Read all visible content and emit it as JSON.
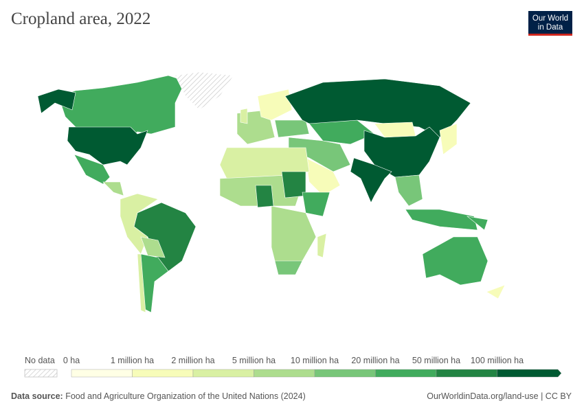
{
  "title": "Cropland area, 2022",
  "logo": {
    "line1": "Our World",
    "line2": "in Data"
  },
  "legend": {
    "no_data_label": "No data",
    "labels": [
      "0 ha",
      "1 million ha",
      "2 million ha",
      "5 million ha",
      "10 million ha",
      "20 million ha",
      "50 million ha",
      "100 million ha"
    ],
    "colors": [
      "#ffffe5",
      "#f7fcb9",
      "#d9f0a3",
      "#addd8e",
      "#78c679",
      "#41ab5d",
      "#238443",
      "#005a32"
    ]
  },
  "map_regions": [
    {
      "region": "Canada",
      "bin": 5
    },
    {
      "region": "Alaska",
      "bin": 7
    },
    {
      "region": "United States",
      "bin": 7
    },
    {
      "region": "Greenland",
      "bin": -1
    },
    {
      "region": "Mexico",
      "bin": 5
    },
    {
      "region": "Central America",
      "bin": 3
    },
    {
      "region": "Brazil",
      "bin": 6
    },
    {
      "region": "Northern South America",
      "bin": 2
    },
    {
      "region": "Argentina",
      "bin": 5
    },
    {
      "region": "Chile",
      "bin": 2
    },
    {
      "region": "Bolivia & Paraguay",
      "bin": 3
    },
    {
      "region": "Western Europe",
      "bin": 3
    },
    {
      "region": "Scandinavia",
      "bin": 1
    },
    {
      "region": "United Kingdom",
      "bin": 2
    },
    {
      "region": "Eastern Europe",
      "bin": 4
    },
    {
      "region": "Russia",
      "bin": 7
    },
    {
      "region": "Kazakhstan",
      "bin": 5
    },
    {
      "region": "Mongolia",
      "bin": 1
    },
    {
      "region": "China",
      "bin": 7
    },
    {
      "region": "India",
      "bin": 7
    },
    {
      "region": "Middle East",
      "bin": 4
    },
    {
      "region": "Arabian Peninsula",
      "bin": 1
    },
    {
      "region": "North Africa",
      "bin": 2
    },
    {
      "region": "Sahel",
      "bin": 3
    },
    {
      "region": "Nigeria",
      "bin": 6
    },
    {
      "region": "Sudan",
      "bin": 6
    },
    {
      "region": "East Africa",
      "bin": 5
    },
    {
      "region": "Central & Southern Africa",
      "bin": 3
    },
    {
      "region": "South Africa",
      "bin": 4
    },
    {
      "region": "Madagascar",
      "bin": 2
    },
    {
      "region": "Southeast Asia",
      "bin": 4
    },
    {
      "region": "Indonesia",
      "bin": 5
    },
    {
      "region": "Japan",
      "bin": 1
    },
    {
      "region": "Australia",
      "bin": 5
    },
    {
      "region": "New Zealand",
      "bin": 1
    },
    {
      "region": "Papua New Guinea",
      "bin": 5
    }
  ],
  "footer": {
    "source_label": "Data source:",
    "source_text": "Food and Agriculture Organization of the United Nations (2024)",
    "url": "OurWorldinData.org/land-use | CC BY"
  }
}
